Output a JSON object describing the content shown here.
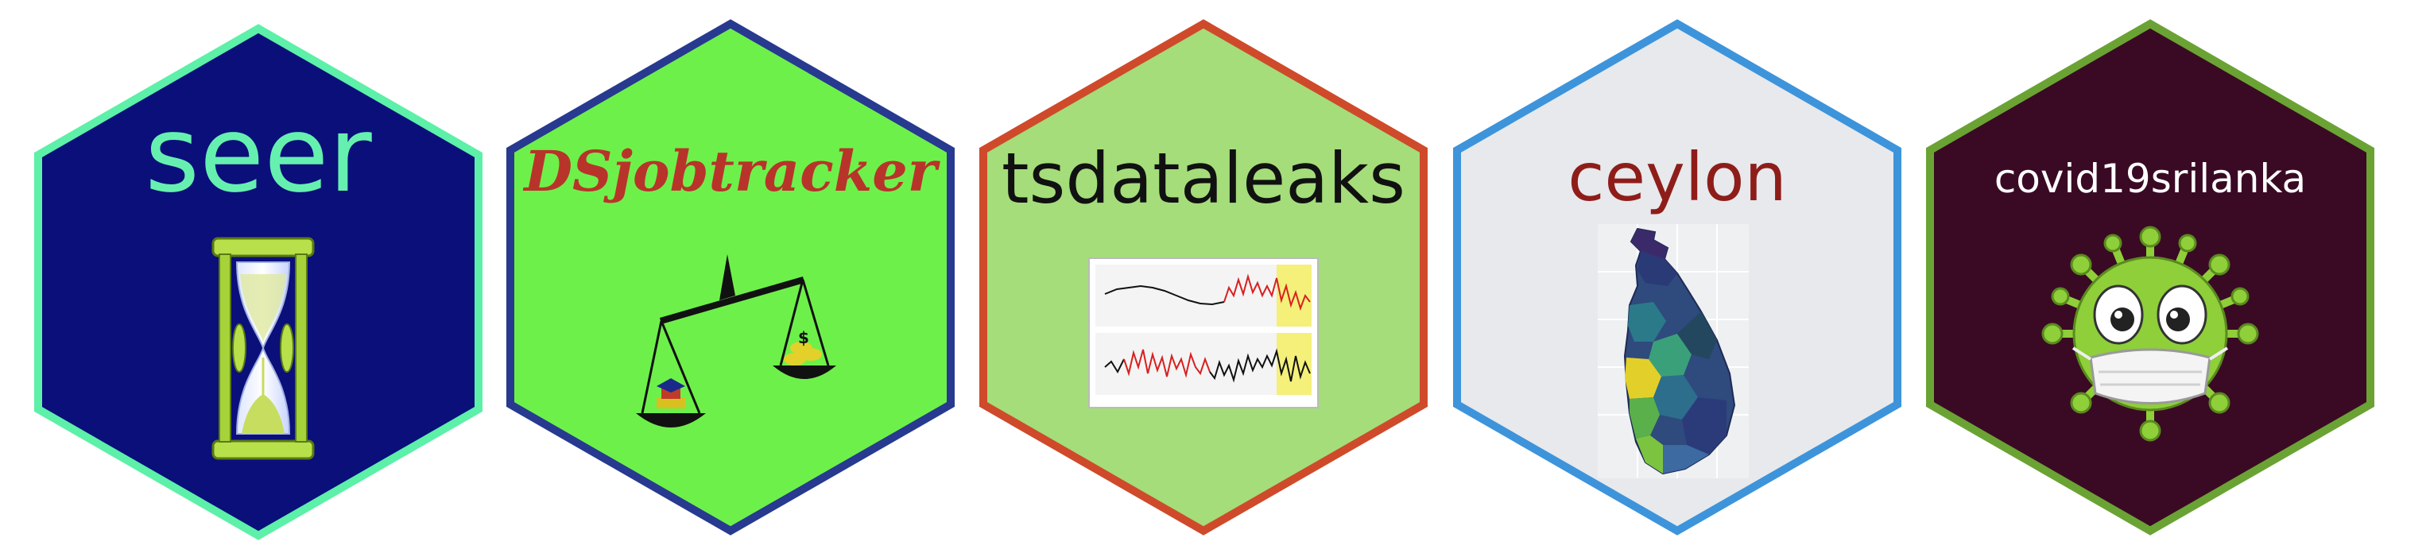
{
  "stickers": [
    {
      "name": "seer",
      "fill": "#0a0f7a",
      "border": "#5cf0a8",
      "text_color": "#66f0b0",
      "icon": "hourglass-icon"
    },
    {
      "name": "DSjobtracker",
      "fill": "#6ef04a",
      "border": "#273a8f",
      "text_color": "#b8342a",
      "icon": "balance-scale-icon"
    },
    {
      "name": "tsdataleaks",
      "fill": "#a4dd7a",
      "border": "#cf4a2a",
      "text_color": "#111111",
      "icon": "time-series-plot-icon"
    },
    {
      "name": "ceylon",
      "fill": "#e7e9ec",
      "border": "#3d94db",
      "text_color": "#8e1d1a",
      "icon": "sri-lanka-map-icon"
    },
    {
      "name": "covid19srilanka",
      "fill": "#3a0a24",
      "border": "#6aa334",
      "text_color": "#ffffff",
      "icon": "virus-mascot-icon"
    }
  ]
}
